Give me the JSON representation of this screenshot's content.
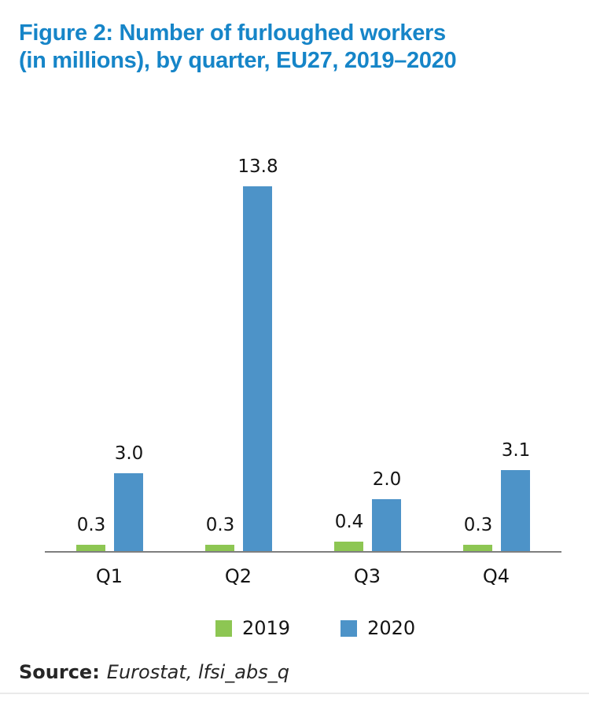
{
  "title": {
    "line1": "Figure 2: Number of furloughed workers",
    "line2": "(in millions), by quarter, EU27, 2019–2020"
  },
  "chart_data": {
    "type": "bar",
    "title": "Figure 2: Number of furloughed workers (in millions), by quarter, EU27, 2019–2020",
    "categories": [
      "Q1",
      "Q2",
      "Q3",
      "Q4"
    ],
    "series": [
      {
        "name": "2019",
        "color": "#8dc653",
        "values": [
          0.3,
          0.3,
          0.4,
          0.3
        ]
      },
      {
        "name": "2020",
        "color": "#4d93c8",
        "values": [
          3.0,
          13.8,
          2.0,
          3.1
        ]
      }
    ],
    "value_label_format": "one_decimal",
    "xlabel": "",
    "ylabel": "",
    "ylim": [
      0,
      14
    ],
    "grid": false,
    "axis_color": "#7f7f7f",
    "legend_position": "bottom"
  },
  "legend": {
    "items": [
      {
        "label": "2019",
        "color": "#8dc653"
      },
      {
        "label": "2020",
        "color": "#4d93c8"
      }
    ]
  },
  "source": {
    "prefix": "Source:",
    "text": "Eurostat, lfsi_abs_q"
  },
  "colors": {
    "title": "#1685c8",
    "axis": "#7f7f7f",
    "label": "#141414"
  }
}
